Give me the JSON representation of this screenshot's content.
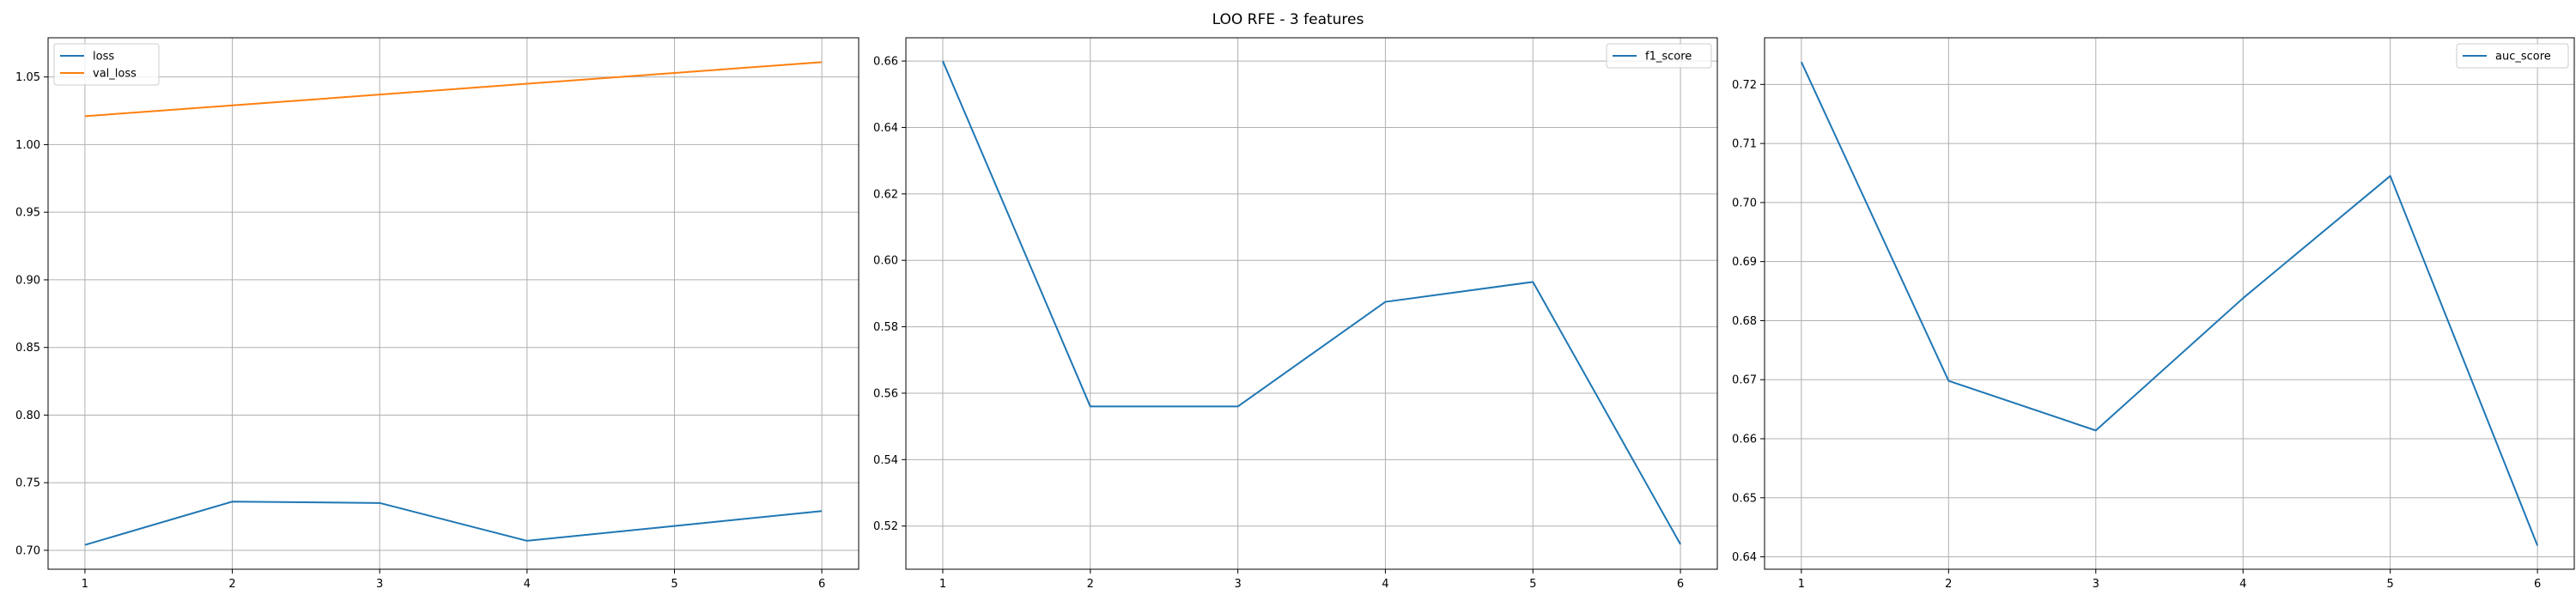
{
  "figure": {
    "title": "LOO RFE - 3 features"
  },
  "chart_data": [
    {
      "type": "line",
      "x": [
        1,
        2,
        3,
        4,
        5,
        6
      ],
      "series": [
        {
          "name": "loss",
          "color": "#1f77b4",
          "values": [
            0.704,
            0.736,
            0.735,
            0.707,
            0.718,
            0.729
          ]
        },
        {
          "name": "val_loss",
          "color": "#ff7f0e",
          "values": [
            1.021,
            1.029,
            1.037,
            1.045,
            1.053,
            1.061
          ]
        }
      ],
      "xlim": [
        0.75,
        6.25
      ],
      "ylim": [
        0.686,
        1.079
      ],
      "xticks": [
        1,
        2,
        3,
        4,
        5,
        6
      ],
      "yticks": [
        0.7,
        0.75,
        0.8,
        0.85,
        0.9,
        0.95,
        1.0,
        1.05
      ],
      "ytick_decimals": 2,
      "grid": true,
      "legend": "upper left"
    },
    {
      "type": "line",
      "x": [
        1,
        2,
        3,
        4,
        5,
        6
      ],
      "series": [
        {
          "name": "f1_score",
          "color": "#1f77b4",
          "values": [
            0.66,
            0.556,
            0.556,
            0.5875,
            0.5935,
            0.5145
          ]
        }
      ],
      "xlim": [
        0.75,
        6.25
      ],
      "ylim": [
        0.507,
        0.667
      ],
      "xticks": [
        1,
        2,
        3,
        4,
        5,
        6
      ],
      "yticks": [
        0.52,
        0.54,
        0.56,
        0.58,
        0.6,
        0.62,
        0.64,
        0.66
      ],
      "ytick_decimals": 2,
      "grid": true,
      "legend": "upper right"
    },
    {
      "type": "line",
      "x": [
        1,
        2,
        3,
        4,
        5,
        6
      ],
      "series": [
        {
          "name": "auc_score",
          "color": "#1f77b4",
          "values": [
            0.7238,
            0.6698,
            0.6614,
            0.6838,
            0.7045,
            0.6419
          ]
        }
      ],
      "xlim": [
        0.75,
        6.25
      ],
      "ylim": [
        0.6379,
        0.7279
      ],
      "xticks": [
        1,
        2,
        3,
        4,
        5,
        6
      ],
      "yticks": [
        0.64,
        0.65,
        0.66,
        0.67,
        0.68,
        0.69,
        0.7,
        0.71,
        0.72
      ],
      "ytick_decimals": 2,
      "grid": true,
      "legend": "upper right"
    }
  ]
}
